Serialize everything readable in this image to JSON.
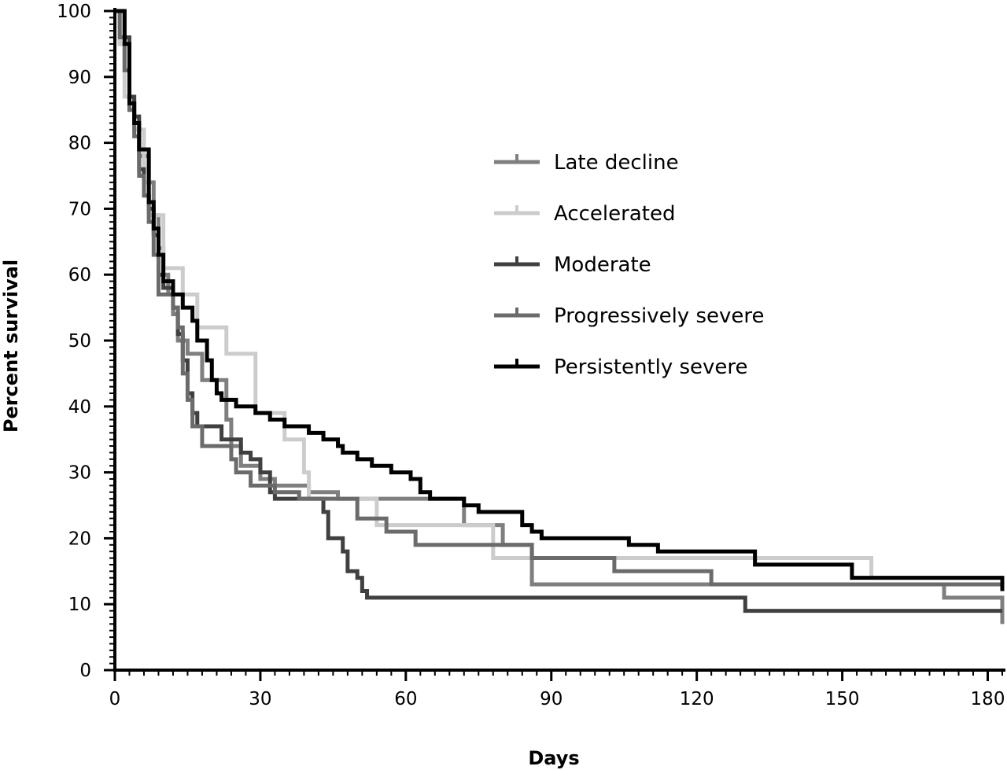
{
  "chart_data": {
    "type": "line",
    "title": "",
    "xlabel": "Days",
    "ylabel": "Percent survival",
    "xlim": [
      0,
      183
    ],
    "ylim": [
      0,
      100
    ],
    "x_ticks": [
      0,
      30,
      60,
      90,
      120,
      150,
      180
    ],
    "y_ticks": [
      0,
      10,
      20,
      30,
      40,
      50,
      60,
      70,
      80,
      90,
      100
    ],
    "grid": false,
    "legend_position": "center-right",
    "series": [
      {
        "name": "Late decline",
        "color": "#7f7f7f",
        "width": 5,
        "steps": [
          [
            0,
            100
          ],
          [
            1,
            95
          ],
          [
            2,
            91
          ],
          [
            3,
            86
          ],
          [
            4,
            82
          ],
          [
            5,
            78
          ],
          [
            7,
            74
          ],
          [
            8,
            69
          ],
          [
            9,
            64
          ],
          [
            10,
            60
          ],
          [
            11,
            57
          ],
          [
            12,
            54
          ],
          [
            13,
            50
          ],
          [
            15,
            48
          ],
          [
            18,
            44
          ],
          [
            23,
            38
          ],
          [
            24,
            34
          ],
          [
            26,
            31
          ],
          [
            30,
            29
          ],
          [
            33,
            28
          ],
          [
            40,
            27
          ],
          [
            46,
            26
          ],
          [
            72,
            26
          ],
          [
            72,
            22
          ],
          [
            78,
            22
          ],
          [
            80,
            19
          ],
          [
            86,
            17
          ],
          [
            86,
            13
          ],
          [
            123,
            13
          ],
          [
            171,
            13
          ],
          [
            171,
            11
          ],
          [
            183,
            11
          ],
          [
            183,
            7
          ]
        ]
      },
      {
        "name": "Accelerated",
        "color": "#cccccc",
        "width": 5,
        "steps": [
          [
            0,
            100
          ],
          [
            1,
            95
          ],
          [
            2,
            87
          ],
          [
            4,
            82
          ],
          [
            6,
            74
          ],
          [
            7,
            69
          ],
          [
            10,
            65
          ],
          [
            10,
            61
          ],
          [
            14,
            57
          ],
          [
            17,
            52
          ],
          [
            23,
            48
          ],
          [
            29,
            39
          ],
          [
            35,
            35
          ],
          [
            39,
            30
          ],
          [
            40,
            26
          ],
          [
            54,
            22
          ],
          [
            77,
            22
          ],
          [
            78,
            17
          ],
          [
            156,
            17
          ],
          [
            156,
            14
          ],
          [
            183,
            14
          ]
        ]
      },
      {
        "name": "Moderate",
        "color": "#404040",
        "width": 5,
        "steps": [
          [
            0,
            100
          ],
          [
            2,
            96
          ],
          [
            3,
            87
          ],
          [
            4,
            84
          ],
          [
            5,
            76
          ],
          [
            6,
            72
          ],
          [
            7,
            70
          ],
          [
            8,
            66
          ],
          [
            9,
            60
          ],
          [
            10,
            58
          ],
          [
            12,
            55
          ],
          [
            13,
            51
          ],
          [
            14,
            47
          ],
          [
            15,
            42
          ],
          [
            16,
            39
          ],
          [
            17,
            37
          ],
          [
            22,
            35
          ],
          [
            26,
            33
          ],
          [
            28,
            32
          ],
          [
            30,
            30
          ],
          [
            32,
            27
          ],
          [
            33,
            26
          ],
          [
            43,
            24
          ],
          [
            44,
            20
          ],
          [
            47,
            18
          ],
          [
            48,
            15
          ],
          [
            50,
            14
          ],
          [
            51,
            12
          ],
          [
            52,
            11
          ],
          [
            130,
            11
          ],
          [
            130,
            9
          ],
          [
            183,
            9
          ]
        ]
      },
      {
        "name": "Progressively severe",
        "color": "#6b6b6b",
        "width": 5,
        "steps": [
          [
            0,
            100
          ],
          [
            1,
            96
          ],
          [
            2,
            91
          ],
          [
            3,
            85
          ],
          [
            4,
            81
          ],
          [
            5,
            75
          ],
          [
            6,
            72
          ],
          [
            7,
            68
          ],
          [
            8,
            63
          ],
          [
            9,
            57
          ],
          [
            12,
            55
          ],
          [
            13,
            52
          ],
          [
            14,
            45
          ],
          [
            15,
            41
          ],
          [
            16,
            37
          ],
          [
            18,
            34
          ],
          [
            24,
            32
          ],
          [
            25,
            30
          ],
          [
            28,
            28
          ],
          [
            33,
            27
          ],
          [
            38,
            26
          ],
          [
            46,
            26
          ],
          [
            50,
            23
          ],
          [
            56,
            21
          ],
          [
            62,
            19
          ],
          [
            80,
            19
          ],
          [
            86,
            17
          ],
          [
            103,
            17
          ],
          [
            103,
            15
          ],
          [
            123,
            15
          ],
          [
            123,
            13
          ],
          [
            183,
            13
          ]
        ]
      },
      {
        "name": "Persistently severe",
        "color": "#000000",
        "width": 5,
        "steps": [
          [
            0,
            100
          ],
          [
            2,
            95
          ],
          [
            3,
            86
          ],
          [
            4,
            83
          ],
          [
            5,
            79
          ],
          [
            7,
            71
          ],
          [
            8,
            67
          ],
          [
            9,
            63
          ],
          [
            10,
            59
          ],
          [
            12,
            57
          ],
          [
            14,
            55
          ],
          [
            16,
            53
          ],
          [
            17,
            50
          ],
          [
            19,
            47
          ],
          [
            20,
            44
          ],
          [
            21,
            42
          ],
          [
            22,
            41
          ],
          [
            25,
            40
          ],
          [
            29,
            39
          ],
          [
            32,
            38
          ],
          [
            35,
            37
          ],
          [
            40,
            36
          ],
          [
            43,
            35
          ],
          [
            46,
            34
          ],
          [
            47,
            33
          ],
          [
            50,
            32
          ],
          [
            53,
            31
          ],
          [
            57,
            30
          ],
          [
            61,
            29
          ],
          [
            63,
            27
          ],
          [
            65,
            26
          ],
          [
            72,
            26
          ],
          [
            72,
            25
          ],
          [
            75,
            24
          ],
          [
            81,
            24
          ],
          [
            84,
            22
          ],
          [
            86,
            21
          ],
          [
            88,
            20
          ],
          [
            106,
            20
          ],
          [
            106,
            19
          ],
          [
            112,
            19
          ],
          [
            112,
            18
          ],
          [
            132,
            18
          ],
          [
            132,
            16
          ],
          [
            152,
            16
          ],
          [
            152,
            14
          ],
          [
            183,
            14
          ],
          [
            183,
            12
          ]
        ]
      }
    ]
  }
}
